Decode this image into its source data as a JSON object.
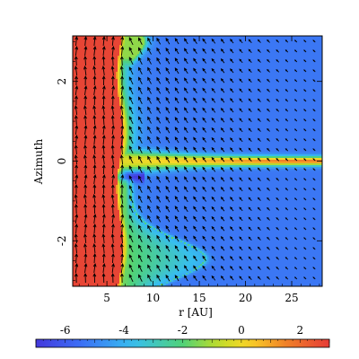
{
  "chart_data": {
    "type": "heatmap",
    "xlabel": "r [AU]",
    "ylabel": "Azimuth",
    "xlim": [
      1.3,
      28.3
    ],
    "ylim": [
      -3.14159,
      3.14159
    ],
    "xticks": [
      5,
      10,
      15,
      20,
      25
    ],
    "xtick_labels": [
      "5",
      "10",
      "15",
      "20",
      "25"
    ],
    "yticks": [
      -2,
      0,
      2
    ],
    "ytick_labels": [
      "-2",
      "0",
      "2"
    ],
    "colorbar": {
      "range": [
        -7,
        3
      ],
      "ticks": [
        -6,
        -4,
        -2,
        0,
        2
      ],
      "tick_labels": [
        "-6",
        "-4",
        "-2",
        "0",
        "2"
      ],
      "colormap": "rainbow (blue-cyan-green-yellow-orange-red)"
    },
    "overlay": "velocity vector field (arrows)",
    "features": [
      {
        "name": "inner-disk",
        "r_range": [
          1.3,
          6.5
        ],
        "value": 2.8
      },
      {
        "name": "spiral-filament",
        "r_range": [
          6.5,
          28.3
        ],
        "azimuth": 0.0,
        "value_peak": 1.6
      },
      {
        "name": "upper-wing",
        "azimuth": 2.9,
        "r_outer_max": 9.0
      },
      {
        "name": "lower-lobe",
        "azimuth": -2.4,
        "r_outer_max": 15.5
      },
      {
        "name": "background",
        "value": -5.3
      }
    ]
  },
  "colors": {
    "background": "#3f6ff4",
    "inner_disk": "#e85a3c",
    "arrow": "#000000"
  }
}
